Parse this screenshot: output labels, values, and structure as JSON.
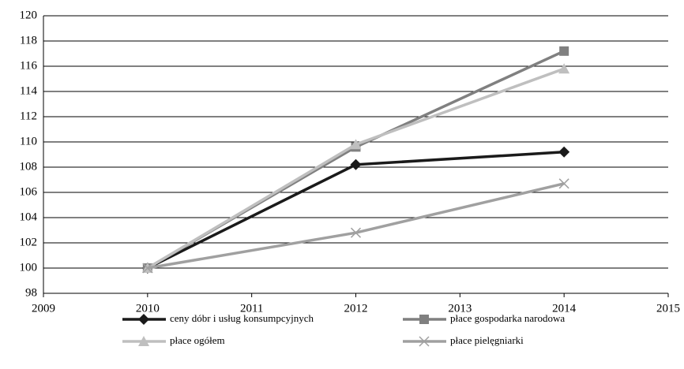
{
  "chart_data": {
    "type": "line",
    "x": [
      2010,
      2012,
      2014
    ],
    "series": [
      {
        "name": "ceny dóbr i usług konsumpcyjnych",
        "color": "#1a1a1a",
        "marker": "diamond",
        "values": [
          100,
          108.2,
          109.2
        ]
      },
      {
        "name": "płace gospodarka narodowa",
        "color": "#808080",
        "marker": "square",
        "values": [
          100,
          109.6,
          117.2
        ]
      },
      {
        "name": "płace ogółem",
        "color": "#bfbfbf",
        "marker": "triangle",
        "values": [
          100,
          109.8,
          115.8
        ]
      },
      {
        "name": "płace pielęgniarki",
        "color": "#a0a0a0",
        "marker": "x",
        "values": [
          100,
          102.8,
          106.7
        ]
      }
    ],
    "xlim": [
      2009,
      2015
    ],
    "xticks": [
      2009,
      2010,
      2011,
      2012,
      2013,
      2014,
      2015
    ],
    "ylim": [
      98,
      120
    ],
    "yticks": [
      98,
      100,
      102,
      104,
      106,
      108,
      110,
      112,
      114,
      116,
      118,
      120
    ],
    "grid": true,
    "legend": "bottom"
  }
}
